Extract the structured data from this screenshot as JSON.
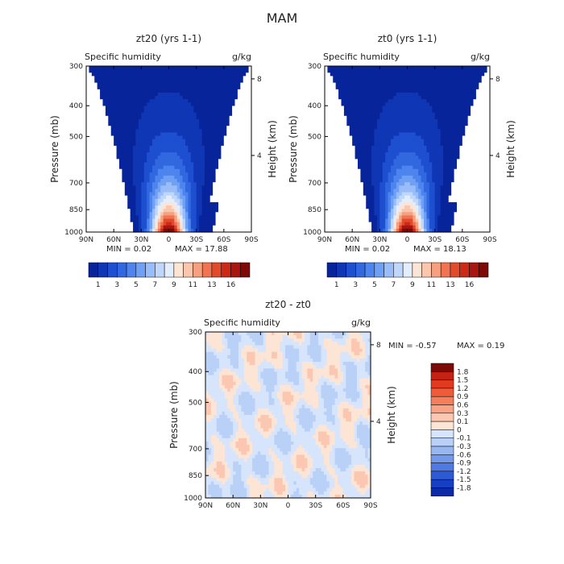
{
  "page_title": "MAM",
  "colors": {
    "blues": [
      "#08249b",
      "#0f37b5",
      "#1d4fd0",
      "#3168e0",
      "#4d84ee",
      "#6fa0f5",
      "#98bdf8",
      "#c0d7fb",
      "#e3eefd"
    ],
    "reds": [
      "#fde5d6",
      "#fac6ad",
      "#f6a07f",
      "#f07452",
      "#e24a2c",
      "#cc2a16",
      "#a8160f",
      "#7e0a08"
    ],
    "diff": [
      "#7e0a08",
      "#c42212",
      "#e23a1f",
      "#ef5a38",
      "#f57e5c",
      "#f9a386",
      "#fcc7b0",
      "#fde5d6",
      "#d6e5fb",
      "#b9d0f7",
      "#97b7f1",
      "#7499ea",
      "#507ae1",
      "#2f5ad5",
      "#163fc4",
      "#0a2aa6"
    ]
  },
  "chart_data": [
    {
      "type": "heatmap",
      "title": "zt20 (yrs 1-1)",
      "subtitle_left": "Specific humidity",
      "subtitle_right": "g/kg",
      "ylabel": "Pressure (mb)",
      "y2label": "Height (km)",
      "x_ticks": [
        "90N",
        "60N",
        "30N",
        "0",
        "30S",
        "60S",
        "90S"
      ],
      "y_ticks": [
        "300",
        "400",
        "500",
        "700",
        "850",
        "1000"
      ],
      "y_tick_values": [
        300,
        400,
        500,
        700,
        850,
        1000
      ],
      "y2_ticks": [
        "8",
        "4"
      ],
      "y2_tick_values": [
        8,
        4
      ],
      "min_label": "MIN =   0.02",
      "max_label": "MAX =   17.88",
      "min": 0.02,
      "max": 17.88,
      "colorbar_ticks": [
        "1",
        "3",
        "5",
        "7",
        "9",
        "11",
        "13",
        "16"
      ]
    },
    {
      "type": "heatmap",
      "title": "zt0 (yrs 1-1)",
      "subtitle_left": "Specific humidity",
      "subtitle_right": "g/kg",
      "ylabel": "Pressure (mb)",
      "y2label": "Height (km)",
      "x_ticks": [
        "90N",
        "60N",
        "30N",
        "0",
        "30S",
        "60S",
        "90S"
      ],
      "y_ticks": [
        "300",
        "400",
        "500",
        "700",
        "850",
        "1000"
      ],
      "y_tick_values": [
        300,
        400,
        500,
        700,
        850,
        1000
      ],
      "y2_ticks": [
        "8",
        "4"
      ],
      "y2_tick_values": [
        8,
        4
      ],
      "min_label": "MIN =   0.02",
      "max_label": "MAX =   18.13",
      "min": 0.02,
      "max": 18.13,
      "colorbar_ticks": [
        "1",
        "3",
        "5",
        "7",
        "9",
        "11",
        "13",
        "16"
      ]
    },
    {
      "type": "heatmap",
      "title": "zt20 - zt0",
      "subtitle_left": "Specific humidity",
      "subtitle_right": "g/kg",
      "ylabel": "Pressure (mb)",
      "y2label": "Height (km)",
      "x_ticks": [
        "90N",
        "60N",
        "30N",
        "0",
        "30S",
        "60S",
        "90S"
      ],
      "y_ticks": [
        "300",
        "400",
        "500",
        "700",
        "850",
        "1000"
      ],
      "y_tick_values": [
        300,
        400,
        500,
        700,
        850,
        1000
      ],
      "y2_ticks": [
        "8",
        "4"
      ],
      "y2_tick_values": [
        8,
        4
      ],
      "min_label": "MIN =   -0.57",
      "max_label": "MAX =   0.19",
      "min": -0.57,
      "max": 0.19,
      "legend_labels": [
        "1.8",
        "1.5",
        "1.2",
        "0.9",
        "0.6",
        "0.3",
        "0.1",
        "0",
        "-0.1",
        "-0.3",
        "-0.6",
        "-0.9",
        "-1.2",
        "-1.5",
        "-1.8"
      ]
    }
  ]
}
